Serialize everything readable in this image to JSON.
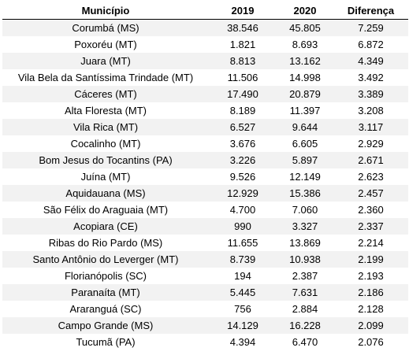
{
  "table": {
    "headers": [
      "Município",
      "2019",
      "2020",
      "Diferença"
    ],
    "rows": [
      [
        "Corumbá (MS)",
        "38.546",
        "45.805",
        "7.259"
      ],
      [
        "Poxoréu (MT)",
        "1.821",
        "8.693",
        "6.872"
      ],
      [
        "Juara (MT)",
        "8.813",
        "13.162",
        "4.349"
      ],
      [
        "Vila Bela da Santíssima Trindade (MT)",
        "11.506",
        "14.998",
        "3.492"
      ],
      [
        "Cáceres (MT)",
        "17.490",
        "20.879",
        "3.389"
      ],
      [
        "Alta Floresta (MT)",
        "8.189",
        "11.397",
        "3.208"
      ],
      [
        "Vila Rica (MT)",
        "6.527",
        "9.644",
        "3.117"
      ],
      [
        "Cocalinho (MT)",
        "3.676",
        "6.605",
        "2.929"
      ],
      [
        "Bom Jesus do Tocantins (PA)",
        "3.226",
        "5.897",
        "2.671"
      ],
      [
        "Juína (MT)",
        "9.526",
        "12.149",
        "2.623"
      ],
      [
        "Aquidauana (MS)",
        "12.929",
        "15.386",
        "2.457"
      ],
      [
        "São Félix do Araguaia (MT)",
        "4.700",
        "7.060",
        "2.360"
      ],
      [
        "Acopiara (CE)",
        "990",
        "3.327",
        "2.337"
      ],
      [
        "Ribas do Rio Pardo (MS)",
        "11.655",
        "13.869",
        "2.214"
      ],
      [
        "Santo Antônio do Leverger (MT)",
        "8.739",
        "10.938",
        "2.199"
      ],
      [
        "Florianópolis (SC)",
        "194",
        "2.387",
        "2.193"
      ],
      [
        "Paranaíta (MT)",
        "5.445",
        "7.631",
        "2.186"
      ],
      [
        "Araranguá (SC)",
        "756",
        "2.884",
        "2.128"
      ],
      [
        "Campo Grande (MS)",
        "14.129",
        "16.228",
        "2.099"
      ],
      [
        "Tucumã (PA)",
        "4.394",
        "6.470",
        "2.076"
      ]
    ]
  },
  "colors": {
    "stripe": "#f2f2f2",
    "background": "#ffffff",
    "text": "#000000",
    "rule": "#000000"
  }
}
